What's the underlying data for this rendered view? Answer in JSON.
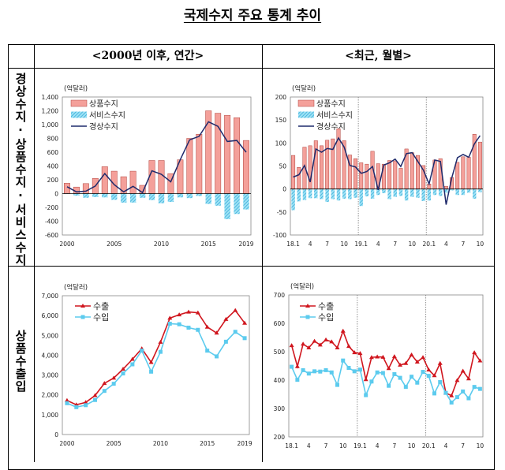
{
  "title": "국제수지 주요 통계 추이",
  "columns": [
    "<2000년 이후, 연간>",
    "<최근, 월별>"
  ],
  "rows": [
    "경상수지·상품수지·서비스수지",
    "상품수출입"
  ],
  "chart_data": [
    {
      "type": "bar",
      "unit_label": "(억달러)",
      "categories": [
        "2000",
        "2001",
        "2002",
        "2003",
        "2004",
        "2005",
        "2006",
        "2007",
        "2008",
        "2009",
        "2010",
        "2011",
        "2012",
        "2013",
        "2014",
        "2015",
        "2016",
        "2017",
        "2018",
        "2019"
      ],
      "x_tick_labels": [
        "2000",
        "2005",
        "2010",
        "2015",
        "2019"
      ],
      "ylim": [
        -600,
        1400
      ],
      "ytick_step": 200,
      "series": [
        {
          "name": "상품수지",
          "kind": "bar",
          "color": "#f4a09a",
          "values": [
            150,
            95,
            145,
            220,
            390,
            325,
            245,
            325,
            120,
            480,
            480,
            290,
            490,
            800,
            860,
            1200,
            1165,
            1135,
            1100,
            770
          ]
        },
        {
          "name": "서비스수지",
          "kind": "bar-hatched",
          "color": "#5bc8e8",
          "values": [
            -5,
            -30,
            -60,
            -50,
            -55,
            -90,
            -130,
            -130,
            -60,
            -95,
            -140,
            -120,
            -55,
            -65,
            -35,
            -150,
            -175,
            -370,
            -295,
            -230
          ]
        },
        {
          "name": "경상수지",
          "kind": "line",
          "color": "#1f2a6b",
          "values": [
            100,
            25,
            35,
            110,
            290,
            130,
            25,
            105,
            15,
            330,
            280,
            170,
            490,
            780,
            830,
            1040,
            975,
            755,
            770,
            600
          ]
        }
      ],
      "dividers": []
    },
    {
      "type": "bar",
      "unit_label": "(억달러)",
      "categories": [
        "18.1",
        "18.2",
        "18.3",
        "18.4",
        "18.5",
        "18.6",
        "18.7",
        "18.8",
        "18.9",
        "18.10",
        "18.11",
        "18.12",
        "19.1",
        "19.2",
        "19.3",
        "19.4",
        "19.5",
        "19.6",
        "19.7",
        "19.8",
        "19.9",
        "19.10",
        "19.11",
        "19.12",
        "20.1",
        "20.2",
        "20.3",
        "20.4",
        "20.5",
        "20.6",
        "20.7",
        "20.8",
        "20.9",
        "20.10"
      ],
      "x_tick_labels": [
        "18.1",
        "4",
        "7",
        "10",
        "19.1",
        "4",
        "7",
        "10",
        "20.1",
        "4",
        "7",
        "10"
      ],
      "ylim": [
        -100,
        200
      ],
      "ytick_step": 50,
      "series": [
        {
          "name": "상품수지",
          "kind": "bar",
          "color": "#f4a09a",
          "values": [
            73,
            47,
            91,
            94,
            105,
            94,
            106,
            109,
            131,
            105,
            74,
            66,
            57,
            54,
            82,
            55,
            54,
            62,
            61,
            45,
            87,
            79,
            73,
            51,
            11,
            63,
            66,
            6,
            25,
            58,
            70,
            69,
            119,
            102
          ]
        },
        {
          "name": "서비스수지",
          "kind": "bar-hatched",
          "color": "#5bc8e8",
          "values": [
            -46,
            -27,
            -24,
            -20,
            -20,
            -22,
            -28,
            -22,
            -25,
            -21,
            -22,
            -19,
            -37,
            -16,
            -21,
            -13,
            -9,
            -22,
            -17,
            -15,
            -25,
            -17,
            -19,
            -26,
            -25,
            -13,
            -15,
            -8,
            -3,
            -13,
            -13,
            -8,
            -21,
            -7
          ]
        },
        {
          "name": "경상수지",
          "kind": "line",
          "color": "#1f2a6b",
          "values": [
            26,
            31,
            51,
            15,
            87,
            80,
            88,
            86,
            111,
            91,
            51,
            48,
            34,
            38,
            49,
            -2,
            52,
            57,
            65,
            49,
            77,
            79,
            60,
            41,
            11,
            63,
            60,
            -34,
            24,
            68,
            75,
            69,
            98,
            116
          ]
        }
      ],
      "dividers": [
        "19.1",
        "20.1"
      ]
    },
    {
      "type": "line",
      "unit_label": "(억달러)",
      "categories": [
        "2000",
        "2001",
        "2002",
        "2003",
        "2004",
        "2005",
        "2006",
        "2007",
        "2008",
        "2009",
        "2010",
        "2011",
        "2012",
        "2013",
        "2014",
        "2015",
        "2016",
        "2017",
        "2018",
        "2019"
      ],
      "x_tick_labels": [
        "2000",
        "2005",
        "2010",
        "2015",
        "2019"
      ],
      "ylim": [
        0,
        7000
      ],
      "ytick_step": 1000,
      "series": [
        {
          "name": "수출",
          "kind": "line-triangle",
          "color": "#d0161e",
          "values": [
            1720,
            1500,
            1620,
            1970,
            2580,
            2850,
            3300,
            3800,
            4330,
            3640,
            4660,
            5870,
            6040,
            6180,
            6140,
            5420,
            5120,
            5810,
            6260,
            5620
          ]
        },
        {
          "name": "수입",
          "kind": "line-square",
          "color": "#5ccbee",
          "values": [
            1580,
            1380,
            1480,
            1740,
            2200,
            2560,
            3080,
            3540,
            4230,
            3170,
            4170,
            5590,
            5560,
            5390,
            5280,
            4230,
            3940,
            4680,
            5180,
            4860
          ]
        }
      ],
      "dividers": []
    },
    {
      "type": "line",
      "unit_label": "(억달러)",
      "categories": [
        "18.1",
        "18.2",
        "18.3",
        "18.4",
        "18.5",
        "18.6",
        "18.7",
        "18.8",
        "18.9",
        "18.10",
        "18.11",
        "18.12",
        "19.1",
        "19.2",
        "19.3",
        "19.4",
        "19.5",
        "19.6",
        "19.7",
        "19.8",
        "19.9",
        "19.10",
        "19.11",
        "19.12",
        "20.1",
        "20.2",
        "20.3",
        "20.4",
        "20.5",
        "20.6",
        "20.7",
        "20.8",
        "20.9",
        "20.10"
      ],
      "x_tick_labels": [
        "18.1",
        "4",
        "7",
        "10",
        "19.1",
        "4",
        "7",
        "10",
        "20.1",
        "4",
        "7",
        "10"
      ],
      "ylim": [
        200,
        700
      ],
      "ytick_step": 100,
      "series": [
        {
          "name": "수출",
          "kind": "line-triangle",
          "color": "#d0161e",
          "values": [
            522,
            448,
            527,
            514,
            537,
            524,
            542,
            535,
            514,
            573,
            519,
            497,
            494,
            402,
            480,
            482,
            481,
            441,
            483,
            453,
            459,
            489,
            464,
            480,
            436,
            416,
            459,
            355,
            345,
            399,
            432,
            405,
            497,
            468
          ]
        },
        {
          "name": "수입",
          "kind": "line-square",
          "color": "#5ccbee",
          "values": [
            447,
            401,
            435,
            423,
            431,
            430,
            435,
            427,
            383,
            469,
            443,
            431,
            437,
            347,
            395,
            427,
            425,
            380,
            421,
            408,
            376,
            412,
            391,
            429,
            415,
            353,
            393,
            355,
            321,
            340,
            360,
            336,
            376,
            369
          ]
        }
      ],
      "dividers": [
        "19.1",
        "20.1"
      ]
    }
  ]
}
